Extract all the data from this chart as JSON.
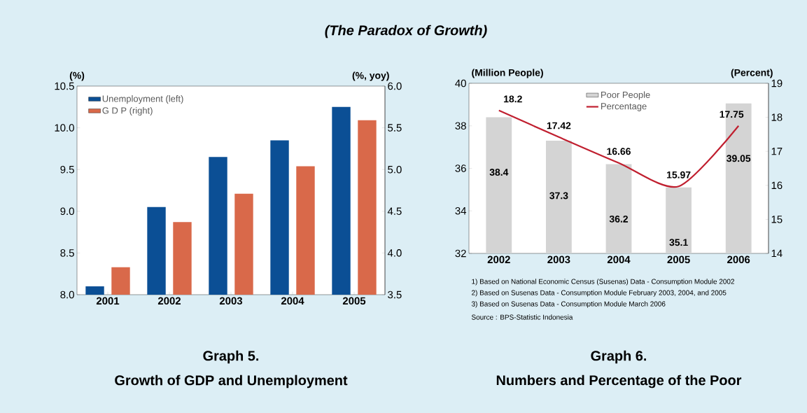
{
  "chart_data": [
    {
      "type": "bar",
      "title": "Growth of GDP and Unemployment",
      "subtitle": "Graph 5.",
      "ylabel": "(%)",
      "y2label": "(%, yoy)",
      "annotations": [
        "(The Paradox of Growth)"
      ],
      "categories": [
        "2001",
        "2002",
        "2003",
        "2004",
        "2005"
      ],
      "series": [
        {
          "name": "Unemployment (left)",
          "color": "#0b4f95",
          "values": [
            8.1,
            9.05,
            9.65,
            9.85,
            10.25
          ]
        },
        {
          "name": "G D P (right)",
          "color": "#d9694a",
          "values": [
            3.83,
            4.37,
            4.71,
            5.04,
            5.59
          ],
          "axis": "y2"
        }
      ],
      "ylim": [
        8.0,
        10.5
      ],
      "yticks": [
        {
          "value": 8,
          "label": "8.0"
        },
        8.5,
        {
          "value": 9,
          "label": "9.0"
        },
        9.5,
        {
          "value": 10,
          "label": "10.0"
        },
        10.5
      ],
      "y2lim": [
        3.5,
        6.0
      ],
      "y2ticks": [
        3.5,
        {
          "value": 4,
          "label": "4.0"
        },
        4.5,
        {
          "value": 5,
          "label": "5.0"
        },
        5.5,
        {
          "value": 6,
          "label": "6.0"
        }
      ],
      "legend": "top left"
    },
    {
      "type": "bar",
      "title": "Numbers and Percentage of the Poor",
      "subtitle": "Graph 6.",
      "ylabel": "(Million People)",
      "y2label": "(Percent)",
      "annotations": [
        "1) Based on National Economic Census (Susenas) Data - Consumption Module 2002",
        "2) Based on Susenas Data - Consumption Module February 2003, 2004, and 2005",
        "3) Based on Susenas Data - Consumption Module March 2006",
        "Source : BPS-Statistic Indonesia"
      ],
      "categories": [
        "2002",
        "2003",
        "2004",
        "2005",
        "2006"
      ],
      "series": [
        {
          "name": "Poor People",
          "color": "#d4d4d4",
          "values": [
            38.4,
            37.3,
            36.2,
            35.1,
            39.05
          ]
        },
        {
          "name": "Percentage",
          "type": "line",
          "color": "#c01f2f",
          "values": [
            18.2,
            17.42,
            16.66,
            15.97,
            17.75
          ],
          "axis": "y2"
        }
      ],
      "ylim": [
        32,
        40
      ],
      "yticks": [
        32,
        34,
        36,
        38,
        40
      ],
      "y2lim": [
        14,
        19
      ],
      "y2ticks": [
        14,
        15,
        16,
        17,
        18,
        19
      ],
      "data_labels": true,
      "legend": "top"
    }
  ]
}
